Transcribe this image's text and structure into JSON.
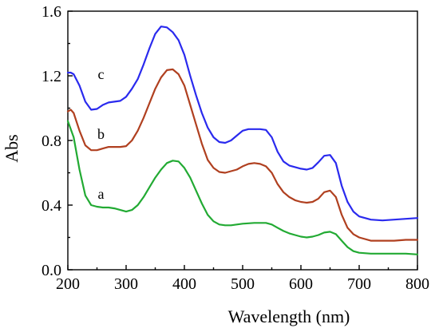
{
  "chart_data": {
    "type": "line",
    "title": "",
    "xlabel": "Wavelength (nm)",
    "ylabel": "Abs",
    "xlim": [
      200,
      800
    ],
    "ylim": [
      0.0,
      1.6
    ],
    "grid": false,
    "legend": "none",
    "x_ticks": [
      200,
      300,
      400,
      500,
      600,
      700,
      800
    ],
    "x_tick_labels": [
      "200",
      "300",
      "400",
      "500",
      "600",
      "700",
      "800"
    ],
    "y_ticks": [
      0.0,
      0.4,
      0.8,
      1.2,
      1.6
    ],
    "y_tick_labels": [
      "0.0",
      "0.4",
      "0.8",
      "1.2",
      "1.6"
    ],
    "series": [
      {
        "name": "a",
        "color": "#22aa33",
        "label_at": [
          265,
          0.44
        ],
        "points": [
          [
            200,
            0.92
          ],
          [
            210,
            0.82
          ],
          [
            220,
            0.62
          ],
          [
            230,
            0.46
          ],
          [
            240,
            0.4
          ],
          [
            250,
            0.39
          ],
          [
            260,
            0.385
          ],
          [
            270,
            0.385
          ],
          [
            280,
            0.38
          ],
          [
            290,
            0.37
          ],
          [
            300,
            0.36
          ],
          [
            310,
            0.37
          ],
          [
            320,
            0.4
          ],
          [
            330,
            0.45
          ],
          [
            340,
            0.51
          ],
          [
            350,
            0.57
          ],
          [
            360,
            0.62
          ],
          [
            370,
            0.66
          ],
          [
            380,
            0.675
          ],
          [
            390,
            0.67
          ],
          [
            400,
            0.63
          ],
          [
            410,
            0.57
          ],
          [
            420,
            0.49
          ],
          [
            430,
            0.41
          ],
          [
            440,
            0.34
          ],
          [
            450,
            0.3
          ],
          [
            460,
            0.28
          ],
          [
            470,
            0.275
          ],
          [
            480,
            0.275
          ],
          [
            490,
            0.28
          ],
          [
            500,
            0.285
          ],
          [
            520,
            0.29
          ],
          [
            540,
            0.29
          ],
          [
            550,
            0.28
          ],
          [
            560,
            0.26
          ],
          [
            570,
            0.24
          ],
          [
            580,
            0.225
          ],
          [
            590,
            0.215
          ],
          [
            600,
            0.205
          ],
          [
            610,
            0.2
          ],
          [
            620,
            0.205
          ],
          [
            630,
            0.215
          ],
          [
            640,
            0.23
          ],
          [
            650,
            0.235
          ],
          [
            660,
            0.22
          ],
          [
            670,
            0.18
          ],
          [
            680,
            0.14
          ],
          [
            690,
            0.115
          ],
          [
            700,
            0.105
          ],
          [
            720,
            0.1
          ],
          [
            740,
            0.1
          ],
          [
            760,
            0.1
          ],
          [
            780,
            0.1
          ],
          [
            800,
            0.095
          ]
        ]
      },
      {
        "name": "b",
        "color": "#b04020",
        "label_at": [
          265,
          0.81
        ],
        "points": [
          [
            200,
            0.98
          ],
          [
            205,
            0.99
          ],
          [
            210,
            0.97
          ],
          [
            220,
            0.86
          ],
          [
            230,
            0.77
          ],
          [
            240,
            0.74
          ],
          [
            250,
            0.74
          ],
          [
            260,
            0.75
          ],
          [
            270,
            0.76
          ],
          [
            280,
            0.76
          ],
          [
            290,
            0.76
          ],
          [
            300,
            0.765
          ],
          [
            310,
            0.8
          ],
          [
            320,
            0.86
          ],
          [
            330,
            0.94
          ],
          [
            340,
            1.03
          ],
          [
            350,
            1.12
          ],
          [
            360,
            1.19
          ],
          [
            370,
            1.235
          ],
          [
            380,
            1.24
          ],
          [
            390,
            1.21
          ],
          [
            400,
            1.14
          ],
          [
            410,
            1.02
          ],
          [
            420,
            0.9
          ],
          [
            430,
            0.78
          ],
          [
            440,
            0.68
          ],
          [
            450,
            0.63
          ],
          [
            460,
            0.605
          ],
          [
            470,
            0.6
          ],
          [
            480,
            0.61
          ],
          [
            490,
            0.62
          ],
          [
            500,
            0.64
          ],
          [
            510,
            0.655
          ],
          [
            520,
            0.66
          ],
          [
            530,
            0.655
          ],
          [
            540,
            0.64
          ],
          [
            550,
            0.6
          ],
          [
            560,
            0.53
          ],
          [
            570,
            0.48
          ],
          [
            580,
            0.45
          ],
          [
            590,
            0.43
          ],
          [
            600,
            0.42
          ],
          [
            610,
            0.415
          ],
          [
            620,
            0.42
          ],
          [
            630,
            0.44
          ],
          [
            640,
            0.48
          ],
          [
            650,
            0.49
          ],
          [
            660,
            0.45
          ],
          [
            670,
            0.34
          ],
          [
            680,
            0.26
          ],
          [
            690,
            0.22
          ],
          [
            700,
            0.2
          ],
          [
            720,
            0.18
          ],
          [
            740,
            0.18
          ],
          [
            760,
            0.18
          ],
          [
            780,
            0.185
          ],
          [
            800,
            0.185
          ]
        ]
      },
      {
        "name": "c",
        "color": "#2a2aee",
        "label_at": [
          265,
          1.18
        ],
        "points": [
          [
            200,
            1.22
          ],
          [
            205,
            1.22
          ],
          [
            210,
            1.21
          ],
          [
            220,
            1.14
          ],
          [
            230,
            1.04
          ],
          [
            240,
            0.99
          ],
          [
            250,
            0.995
          ],
          [
            260,
            1.02
          ],
          [
            270,
            1.035
          ],
          [
            280,
            1.04
          ],
          [
            290,
            1.045
          ],
          [
            300,
            1.07
          ],
          [
            310,
            1.12
          ],
          [
            320,
            1.18
          ],
          [
            330,
            1.27
          ],
          [
            340,
            1.37
          ],
          [
            350,
            1.46
          ],
          [
            360,
            1.505
          ],
          [
            370,
            1.5
          ],
          [
            380,
            1.47
          ],
          [
            390,
            1.42
          ],
          [
            400,
            1.33
          ],
          [
            410,
            1.2
          ],
          [
            420,
            1.08
          ],
          [
            430,
            0.97
          ],
          [
            440,
            0.88
          ],
          [
            450,
            0.82
          ],
          [
            460,
            0.79
          ],
          [
            470,
            0.785
          ],
          [
            480,
            0.8
          ],
          [
            490,
            0.83
          ],
          [
            500,
            0.86
          ],
          [
            510,
            0.87
          ],
          [
            520,
            0.87
          ],
          [
            530,
            0.87
          ],
          [
            540,
            0.865
          ],
          [
            550,
            0.82
          ],
          [
            560,
            0.73
          ],
          [
            570,
            0.67
          ],
          [
            580,
            0.645
          ],
          [
            590,
            0.635
          ],
          [
            600,
            0.625
          ],
          [
            610,
            0.62
          ],
          [
            620,
            0.63
          ],
          [
            630,
            0.665
          ],
          [
            640,
            0.705
          ],
          [
            650,
            0.71
          ],
          [
            660,
            0.66
          ],
          [
            670,
            0.52
          ],
          [
            680,
            0.42
          ],
          [
            690,
            0.36
          ],
          [
            700,
            0.33
          ],
          [
            720,
            0.31
          ],
          [
            740,
            0.305
          ],
          [
            760,
            0.31
          ],
          [
            780,
            0.315
          ],
          [
            800,
            0.32
          ]
        ]
      }
    ]
  }
}
